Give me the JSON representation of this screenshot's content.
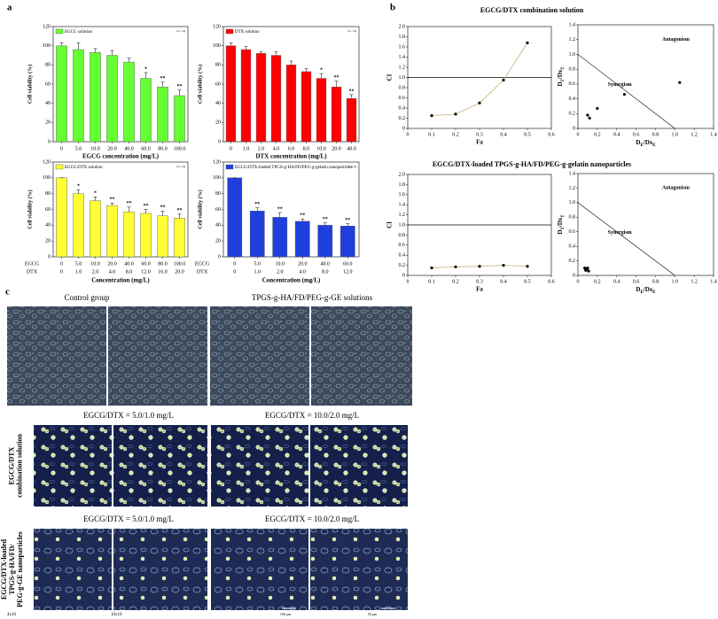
{
  "panels": {
    "a": "a",
    "b": "b",
    "c": "c"
  },
  "chart_data": [
    {
      "type": "bar",
      "note": "(n = 6)",
      "ylabel": "Cell viability (%)",
      "xlabel": "EGCG concentration (mg/L)",
      "categories": [
        "0",
        "5.0",
        "10.0",
        "20.0",
        "40.0",
        "60.0",
        "80.0",
        "100.0"
      ],
      "category_color": "#33cc00",
      "series": [
        {
          "name": "EGCG solution",
          "color": "#66ff33",
          "values": [
            100,
            96,
            93,
            90,
            83,
            66,
            57,
            48
          ],
          "errors": [
            3,
            7,
            4,
            5,
            4,
            6,
            5,
            6
          ]
        }
      ],
      "significance": [
        null,
        null,
        null,
        null,
        null,
        "*",
        "**",
        "**"
      ],
      "ylim": [
        0,
        120
      ],
      "yticks": [
        0,
        20,
        40,
        60,
        80,
        100,
        120
      ]
    },
    {
      "type": "bar",
      "note": "(n = 6)",
      "ylabel": "Cell viability (%)",
      "xlabel": "DTX concentration (mg/L)",
      "categories": [
        "0",
        "1.0",
        "2.0",
        "4.0",
        "6.0",
        "8.0",
        "10.0",
        "20.0",
        "40.0"
      ],
      "category_color": "#cc0000",
      "series": [
        {
          "name": "DTX solution",
          "color": "#ff0000",
          "values": [
            100,
            96,
            92,
            90,
            80,
            73,
            66,
            57,
            45
          ],
          "errors": [
            3,
            3,
            2,
            4,
            4,
            3,
            5,
            6,
            4
          ]
        }
      ],
      "significance": [
        null,
        null,
        null,
        null,
        null,
        null,
        "*",
        "**",
        "**"
      ],
      "ylim": [
        0,
        120
      ],
      "yticks": [
        0,
        20,
        40,
        60,
        80,
        100,
        120
      ]
    },
    {
      "type": "bar",
      "note": "(n = 6)",
      "ylabel": "Cell viability (%)",
      "xlabel": "Concentration (mg/L)",
      "category_rows": [
        {
          "name": "EGCG",
          "color": "#33cc00",
          "labels": [
            "0",
            "5.0",
            "10.0",
            "20.0",
            "40.0",
            "60.0",
            "80.0",
            "100.0"
          ]
        },
        {
          "name": "DTX",
          "color": "#cc0000",
          "labels": [
            "0",
            "1.0",
            "2.0",
            "4.0",
            "8.0",
            "12.0",
            "16.0",
            "20.0"
          ]
        }
      ],
      "series": [
        {
          "name": "EGCG/DTX solution",
          "color": "#ffff33",
          "values": [
            100,
            80,
            71,
            65,
            57,
            55,
            52,
            49
          ],
          "errors": [
            0,
            5,
            5,
            3,
            6,
            5,
            6,
            5
          ]
        }
      ],
      "significance": [
        null,
        "*",
        "*",
        "**",
        "**",
        "**",
        "**",
        "**"
      ],
      "ylim": [
        0,
        120
      ],
      "yticks": [
        0,
        20,
        40,
        60,
        80,
        100,
        120
      ]
    },
    {
      "type": "bar",
      "note": "(n = 6)",
      "ylabel": "Cell viability (%)",
      "xlabel": "Concentration (mg/L)",
      "category_rows": [
        {
          "name": "EGCG",
          "color": "#33cc00",
          "labels": [
            "0",
            "5.0",
            "10.0",
            "20.0",
            "40.0",
            "60.0"
          ]
        },
        {
          "name": "DTX",
          "color": "#cc0000",
          "labels": [
            "0",
            "1.0",
            "2.0",
            "4.0",
            "8.0",
            "12.0"
          ]
        }
      ],
      "series": [
        {
          "name": "EGCG/DTX-loaded TPGS-g-HA/FD/PEG-g-gelatin nanoparticles",
          "color": "#1f3fdc",
          "values": [
            100,
            58,
            50,
            45,
            40,
            39
          ],
          "errors": [
            0,
            4,
            6,
            3,
            3,
            3
          ]
        }
      ],
      "significance": [
        null,
        "**",
        "**",
        "**",
        "**",
        "**"
      ],
      "ylim": [
        0,
        120
      ],
      "yticks": [
        0,
        20,
        40,
        60,
        80,
        100,
        120
      ]
    },
    {
      "type": "scatter",
      "title": "EGCG/DTX combination solution",
      "xlabel": "Fa",
      "ylabel": "CI",
      "x": [
        0.1,
        0.2,
        0.3,
        0.4,
        0.5
      ],
      "values": [
        0.25,
        0.28,
        0.5,
        0.95,
        1.68
      ],
      "color": "#000000",
      "fit_line": "#c8b078",
      "reference_line": 1,
      "xlim": [
        0,
        0.6
      ],
      "xticks": [
        0,
        0.1,
        0.2,
        0.3,
        0.4,
        0.5,
        0.6
      ],
      "ylim": [
        0,
        2
      ],
      "yticks": [
        0,
        0.2,
        0.4,
        0.6,
        0.8,
        {
          "value": 1,
          "label": "1.0"
        },
        1.2,
        1.4,
        1.6,
        1.8,
        {
          "value": 2,
          "label": "2.0"
        }
      ]
    },
    {
      "type": "scatter",
      "xlabel": [
        "D",
        "E",
        "/Dx",
        "E"
      ],
      "ylabel": [
        "D",
        "T",
        "/Dx",
        "T"
      ],
      "annotations": [
        "Antagonism",
        "Synergism"
      ],
      "x": [
        0.1,
        0.12,
        0.2,
        0.48,
        1.05
      ],
      "values": [
        0.18,
        0.14,
        0.27,
        0.46,
        0.62
      ],
      "color": "#000000",
      "additivity_line": {
        "x": [
          0,
          1
        ],
        "y": [
          1,
          0
        ]
      },
      "xlim": [
        0,
        1.4
      ],
      "xticks": [
        0,
        0.2,
        0.4,
        0.6,
        0.8,
        {
          "value": 1,
          "label": "1.0"
        },
        1.2,
        1.4
      ],
      "ylim": [
        0,
        1.4
      ],
      "yticks": [
        0,
        0.2,
        0.4,
        0.6,
        0.8,
        {
          "value": 1,
          "label": "1.0"
        },
        1.2,
        1.4
      ]
    },
    {
      "type": "scatter",
      "title": "EGCG/DTX-loaded TPGS-g-HA/FD/PEG-g-gelatin nanoparticles",
      "xlabel": "Fa",
      "ylabel": "CI",
      "x": [
        0.1,
        0.2,
        0.3,
        0.4,
        0.5
      ],
      "values": [
        0.15,
        0.17,
        0.18,
        0.2,
        0.18
      ],
      "color": "#000000",
      "fit_line": "#c8b078",
      "reference_line": 1,
      "xlim": [
        0,
        0.6
      ],
      "xticks": [
        0,
        0.1,
        0.2,
        0.3,
        0.4,
        0.5,
        0.6
      ],
      "ylim": [
        0,
        2
      ],
      "yticks": [
        0,
        0.2,
        0.4,
        0.6,
        0.8,
        {
          "value": 1,
          "label": "1.0"
        },
        1.2,
        1.4,
        1.6,
        1.8,
        {
          "value": 2,
          "label": "2.0"
        }
      ]
    },
    {
      "type": "scatter",
      "xlabel": [
        "D",
        "E",
        "/Dx",
        "E"
      ],
      "ylabel": [
        "D",
        "T",
        "/Dx",
        "T"
      ],
      "annotations": [
        "Antagonism",
        "Synergism"
      ],
      "x": [
        0.07,
        0.1,
        0.08,
        0.11,
        0.09
      ],
      "values": [
        0.1,
        0.1,
        0.07,
        0.06,
        0.09
      ],
      "color": "#000000",
      "additivity_line": {
        "x": [
          0,
          1
        ],
        "y": [
          1,
          0
        ]
      },
      "xlim": [
        0,
        1.4
      ],
      "xticks": [
        0,
        0.2,
        0.4,
        0.6,
        0.8,
        {
          "value": 1,
          "label": "1.0"
        },
        1.2,
        1.4
      ],
      "ylim": [
        0,
        1.4
      ],
      "yticks": [
        0,
        0.2,
        0.4,
        0.6,
        0.8,
        {
          "value": 1,
          "label": "1.0"
        },
        1.2,
        1.4
      ]
    }
  ],
  "micrographs": {
    "captions": [
      "Control group",
      "TPGS-g-HA/FD/PEG-g-GE solutions",
      "EGCG/DTX = 5.0/1.0 mg/L",
      "EGCG/DTX = 10.0/2.0 mg/L",
      "EGCG/DTX = 5.0/1.0 mg/L",
      "EGCG/DTX = 10.0/2.0 mg/L"
    ],
    "row_labels": [
      [
        "EGCG/DTX",
        "combination solution"
      ],
      [
        "EGCG/DTX-loaded",
        "TPGS-g-HA/FD/",
        "PEG-g-GE nanoparticles"
      ]
    ],
    "magnifications": [
      "4x10",
      "10x10"
    ],
    "scale_bars": [
      "100 μm",
      "50 μm"
    ]
  }
}
